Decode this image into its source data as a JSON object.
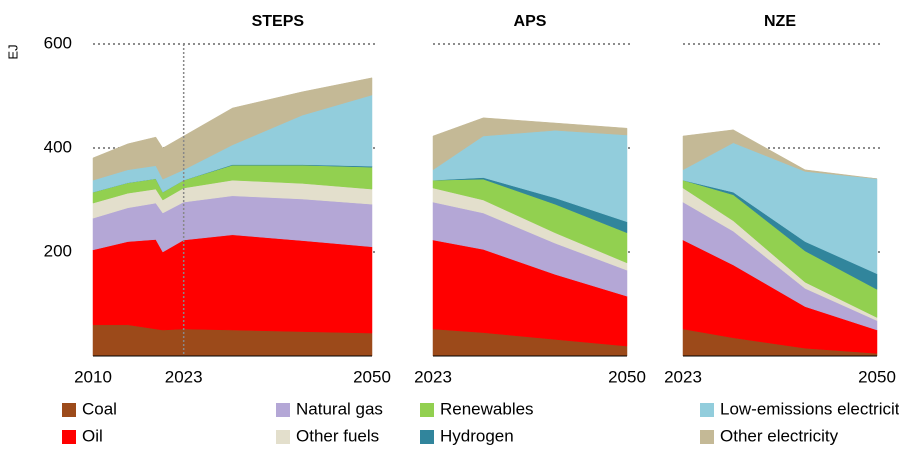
{
  "y_label": "EJ",
  "legend": [
    {
      "name": "Coal",
      "color": "#9c4a1a"
    },
    {
      "name": "Oil",
      "color": "#ff0000"
    },
    {
      "name": "Natural gas",
      "color": "#b4a7d6"
    },
    {
      "name": "Other fuels",
      "color": "#e3dfcc"
    },
    {
      "name": "Renewables",
      "color": "#92d050"
    },
    {
      "name": "Hydrogen",
      "color": "#31859c"
    },
    {
      "name": "Low-emissions electricity",
      "color": "#92cddc"
    },
    {
      "name": "Other electricity",
      "color": "#c4b996"
    }
  ],
  "chart_data": [
    {
      "type": "area",
      "stacked": true,
      "title": "STEPS",
      "x": [
        2010,
        2015,
        2019,
        2020,
        2023,
        2030,
        2040,
        2050
      ],
      "xlim": [
        2010,
        2050
      ],
      "xticks": [
        2010,
        2023,
        2050
      ],
      "vline": 2023,
      "ylim": [
        0,
        600
      ],
      "yticks": [
        200,
        400,
        600
      ],
      "grid": true,
      "series": [
        {
          "values": [
            60,
            60,
            52,
            50,
            52,
            50,
            47,
            44
          ]
        },
        {
          "values": [
            144,
            160,
            172,
            150,
            171,
            183,
            175,
            166
          ]
        },
        {
          "values": [
            61,
            65,
            70,
            75,
            73,
            75,
            80,
            82
          ]
        },
        {
          "values": [
            29,
            28,
            27,
            25,
            27,
            30,
            30,
            29
          ]
        },
        {
          "values": [
            21,
            20,
            20,
            15,
            15,
            29,
            35,
            42
          ]
        },
        {
          "values": [
            0,
            0,
            0,
            0,
            0,
            1,
            1,
            2
          ]
        },
        {
          "values": [
            23,
            25,
            25,
            25,
            20,
            38,
            95,
            137
          ]
        },
        {
          "values": [
            43,
            50,
            55,
            60,
            65,
            71,
            45,
            33
          ]
        }
      ]
    },
    {
      "type": "area",
      "stacked": true,
      "title": "APS",
      "x": [
        2023,
        2030,
        2040,
        2050
      ],
      "xlim": [
        2023,
        2050
      ],
      "xticks": [
        2023,
        2050
      ],
      "ylim": [
        0,
        600
      ],
      "yticks": [
        200,
        400,
        600
      ],
      "grid": true,
      "series": [
        {
          "values": [
            52,
            45,
            32,
            19
          ]
        },
        {
          "values": [
            171,
            160,
            125,
            96
          ]
        },
        {
          "values": [
            73,
            70,
            60,
            50
          ]
        },
        {
          "values": [
            27,
            25,
            20,
            14
          ]
        },
        {
          "values": [
            15,
            40,
            55,
            58
          ]
        },
        {
          "values": [
            0,
            3,
            12,
            21
          ]
        },
        {
          "values": [
            20,
            80,
            130,
            167
          ]
        },
        {
          "values": [
            65,
            35,
            14,
            13
          ]
        }
      ]
    },
    {
      "type": "area",
      "stacked": true,
      "title": "NZE",
      "x": [
        2023,
        2030,
        2040,
        2050
      ],
      "xlim": [
        2023,
        2050
      ],
      "xticks": [
        2023,
        2050
      ],
      "ylim": [
        0,
        600
      ],
      "yticks": [
        200,
        400,
        600
      ],
      "grid": true,
      "series": [
        {
          "values": [
            52,
            35,
            15,
            5
          ]
        },
        {
          "values": [
            171,
            140,
            80,
            45
          ]
        },
        {
          "values": [
            73,
            65,
            35,
            18
          ]
        },
        {
          "values": [
            27,
            20,
            12,
            6
          ]
        },
        {
          "values": [
            15,
            50,
            60,
            54
          ]
        },
        {
          "values": [
            0,
            5,
            18,
            30
          ]
        },
        {
          "values": [
            20,
            95,
            135,
            183
          ]
        },
        {
          "values": [
            65,
            25,
            3,
            0
          ]
        }
      ]
    }
  ]
}
